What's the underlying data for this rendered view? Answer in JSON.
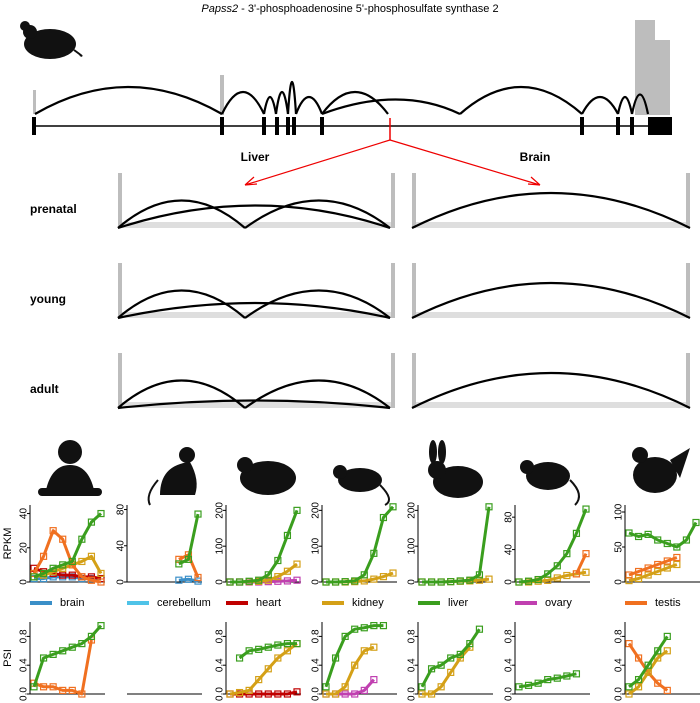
{
  "header": {
    "gene": "Papss2",
    "description": " - 3'-phosphoadenosine 5'-phosphosulfate synthase 2"
  },
  "sashimi": {
    "columns": [
      "Liver",
      "Brain"
    ],
    "rows": [
      "prenatal",
      "young",
      "adult"
    ]
  },
  "legend": [
    {
      "name": "brain",
      "color": "#3a8fc8"
    },
    {
      "name": "cerebellum",
      "color": "#4fc3e8"
    },
    {
      "name": "heart",
      "color": "#c00000"
    },
    {
      "name": "kidney",
      "color": "#d4a017"
    },
    {
      "name": "liver",
      "color": "#3a9e1e"
    },
    {
      "name": "ovary",
      "color": "#c040b0"
    },
    {
      "name": "testis",
      "color": "#f07020"
    }
  ],
  "chart_data": [
    {
      "type": "line",
      "ylabel": "RPKM",
      "ylim": [
        0,
        45
      ],
      "yticks": [
        0,
        20,
        40
      ],
      "series": [
        {
          "name": "brain",
          "values": [
            2,
            2,
            3,
            3,
            3,
            2,
            2,
            2
          ]
        },
        {
          "name": "heart",
          "values": [
            8,
            6,
            5,
            4,
            4,
            3,
            3,
            2
          ]
        },
        {
          "name": "kidney",
          "values": [
            3,
            4,
            6,
            8,
            10,
            12,
            15,
            5
          ]
        },
        {
          "name": "testis",
          "values": [
            5,
            15,
            30,
            25,
            10,
            3,
            1,
            0
          ]
        },
        {
          "name": "liver",
          "values": [
            3,
            5,
            8,
            10,
            12,
            25,
            35,
            40
          ]
        }
      ]
    },
    {
      "type": "line",
      "ylim": [
        0,
        85
      ],
      "yticks": [
        0,
        40,
        80
      ],
      "series": [
        {
          "name": "brain",
          "values": [
            null,
            null,
            null,
            null,
            null,
            2,
            3,
            1
          ]
        },
        {
          "name": "testis",
          "values": [
            null,
            null,
            null,
            null,
            null,
            25,
            30,
            5
          ]
        },
        {
          "name": "liver",
          "values": [
            null,
            null,
            null,
            null,
            null,
            20,
            25,
            75
          ]
        }
      ]
    },
    {
      "type": "line",
      "ylim": [
        0,
        215
      ],
      "yticks": [
        0,
        100,
        200
      ],
      "series": [
        {
          "name": "ovary",
          "values": [
            0,
            0,
            0,
            0,
            1,
            2,
            3,
            5
          ]
        },
        {
          "name": "kidney",
          "values": [
            0,
            0,
            1,
            2,
            5,
            15,
            30,
            50
          ]
        },
        {
          "name": "liver",
          "values": [
            0,
            0,
            2,
            5,
            20,
            60,
            130,
            200
          ]
        }
      ]
    },
    {
      "type": "line",
      "ylim": [
        0,
        215
      ],
      "yticks": [
        0,
        100,
        200
      ],
      "series": [
        {
          "name": "kidney",
          "values": [
            0,
            0,
            0,
            1,
            3,
            8,
            15,
            25
          ]
        },
        {
          "name": "liver",
          "values": [
            0,
            0,
            1,
            3,
            20,
            80,
            180,
            210
          ]
        }
      ]
    },
    {
      "type": "line",
      "ylim": [
        0,
        215
      ],
      "yticks": [
        0,
        100,
        200
      ],
      "series": [
        {
          "name": "kidney",
          "values": [
            0,
            0,
            0,
            1,
            2,
            3,
            5,
            8
          ]
        },
        {
          "name": "liver",
          "values": [
            0,
            0,
            0,
            1,
            3,
            5,
            20,
            210
          ]
        }
      ]
    },
    {
      "type": "line",
      "ylim": [
        0,
        95
      ],
      "yticks": [
        0,
        40,
        80
      ],
      "series": [
        {
          "name": "kidney",
          "values": [
            0,
            0,
            1,
            2,
            5,
            8,
            10,
            12
          ]
        },
        {
          "name": "testis",
          "values": [
            null,
            null,
            null,
            null,
            null,
            null,
            10,
            35
          ]
        },
        {
          "name": "liver",
          "values": [
            0,
            1,
            3,
            10,
            20,
            35,
            60,
            90
          ]
        }
      ]
    },
    {
      "type": "line",
      "ylim": [
        0,
        110
      ],
      "yticks": [
        0,
        50,
        100
      ],
      "series": [
        {
          "name": "kidney",
          "values": [
            2,
            5,
            10,
            15,
            20,
            25
          ]
        },
        {
          "name": "testis",
          "values": [
            10,
            15,
            20,
            25,
            30,
            35
          ]
        },
        {
          "name": "liver",
          "values": [
            70,
            65,
            68,
            60,
            55,
            50,
            60,
            85
          ]
        }
      ]
    },
    {
      "type": "line",
      "ylabel": "PSI",
      "ylim": [
        0,
        1
      ],
      "yticks": [
        {
          "value": 0,
          "label": "0.0"
        },
        {
          "value": 0.4,
          "label": "0.4"
        },
        {
          "value": 0.8,
          "label": "0.8"
        }
      ],
      "series": [
        {
          "name": "testis",
          "values": [
            0.15,
            0.1,
            0.1,
            0.05,
            0.05,
            0,
            0.75
          ]
        },
        {
          "name": "liver",
          "values": [
            0.1,
            0.5,
            0.55,
            0.6,
            0.65,
            0.7,
            0.8,
            0.95
          ]
        }
      ]
    },
    {
      "type": "line",
      "series": []
    },
    {
      "type": "line",
      "ylim": [
        0,
        1
      ],
      "yticks": [
        {
          "value": 0,
          "label": "0.0"
        },
        {
          "value": 0.4,
          "label": "0.4"
        },
        {
          "value": 0.8,
          "label": "0.8"
        }
      ],
      "series": [
        {
          "name": "heart",
          "values": [
            0,
            0,
            0,
            0,
            0,
            0,
            0,
            0.03
          ]
        },
        {
          "name": "kidney",
          "values": [
            0,
            0.02,
            0.05,
            0.2,
            0.35,
            0.5,
            0.6,
            0.7
          ]
        },
        {
          "name": "liver",
          "values": [
            null,
            0.5,
            0.6,
            0.62,
            0.65,
            0.68,
            0.7,
            0.7
          ]
        }
      ]
    },
    {
      "type": "line",
      "ylim": [
        0,
        1
      ],
      "yticks": [
        {
          "value": 0,
          "label": "0.0"
        },
        {
          "value": 0.4,
          "label": "0.4"
        },
        {
          "value": 0.8,
          "label": "0.8"
        }
      ],
      "series": [
        {
          "name": "ovary",
          "values": [
            0,
            0,
            0,
            0,
            0.05,
            0.2
          ]
        },
        {
          "name": "kidney",
          "values": [
            0,
            0,
            0.1,
            0.4,
            0.6,
            0.65
          ]
        },
        {
          "name": "liver",
          "values": [
            0.1,
            0.5,
            0.8,
            0.9,
            0.92,
            0.95,
            0.95
          ]
        }
      ]
    },
    {
      "type": "line",
      "ylim": [
        0,
        1
      ],
      "yticks": [
        {
          "value": 0,
          "label": "0.0"
        },
        {
          "value": 0.4,
          "label": "0.4"
        },
        {
          "value": 0.8,
          "label": "0.8"
        }
      ],
      "series": [
        {
          "name": "kidney",
          "values": [
            0,
            0,
            0.1,
            0.3,
            0.5,
            0.65
          ]
        },
        {
          "name": "liver",
          "values": [
            0.1,
            0.35,
            0.4,
            0.5,
            0.55,
            0.7,
            0.9
          ]
        }
      ]
    },
    {
      "type": "line",
      "ylim": [
        0,
        1
      ],
      "yticks": [
        {
          "value": 0,
          "label": "0.0"
        },
        {
          "value": 0.4,
          "label": "0.4"
        },
        {
          "value": 0.8,
          "label": "0.8"
        }
      ],
      "series": [
        {
          "name": "liver",
          "values": [
            0.1,
            0.12,
            0.15,
            0.2,
            0.22,
            0.25,
            0.28
          ]
        }
      ]
    },
    {
      "type": "line",
      "ylim": [
        0,
        1
      ],
      "yticks": [
        {
          "value": 0,
          "label": "0.0"
        },
        {
          "value": 0.4,
          "label": "0.4"
        },
        {
          "value": 0.8,
          "label": "0.8"
        }
      ],
      "series": [
        {
          "name": "testis",
          "values": [
            0.7,
            0.5,
            0.3,
            0.15,
            0.05
          ]
        },
        {
          "name": "kidney",
          "values": [
            0,
            0.1,
            0.3,
            0.5,
            0.6
          ]
        },
        {
          "name": "liver",
          "values": [
            0.1,
            0.2,
            0.4,
            0.6,
            0.8
          ]
        }
      ]
    }
  ]
}
